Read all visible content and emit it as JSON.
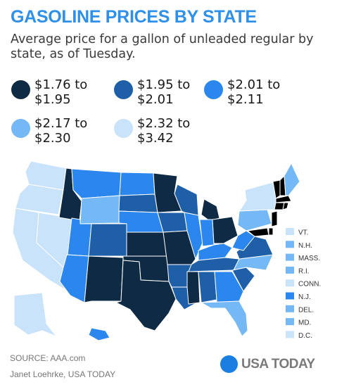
{
  "title": "GASOLINE PRICES BY STATE",
  "subtitle": "Average price for a gallon of unleaded regular by state, as of Tuesday.",
  "legend": [
    {
      "line1": "$1.76 to",
      "line2": "$1.95",
      "color": "#0f2a44"
    },
    {
      "line1": "$1.95 to",
      "line2": "$2.01",
      "color": "#1f5fa8"
    },
    {
      "line1": "$2.01 to",
      "line2": "$2.11",
      "color": "#2b87ee"
    },
    {
      "line1": "$2.17 to",
      "line2": "$2.30",
      "color": "#74b8f5"
    },
    {
      "line1": "$2.32 to",
      "line2": "$3.42",
      "color": "#c8e3fa"
    }
  ],
  "small_states": [
    {
      "label": "VT.",
      "bin": 4
    },
    {
      "label": "N.H.",
      "bin": 3
    },
    {
      "label": "MASS.",
      "bin": 3
    },
    {
      "label": "R.I.",
      "bin": 3
    },
    {
      "label": "CONN.",
      "bin": 4
    },
    {
      "label": "N.J.",
      "bin": 2
    },
    {
      "label": "DEL.",
      "bin": 3
    },
    {
      "label": "MD.",
      "bin": 3
    },
    {
      "label": "D.C.",
      "bin": 4
    }
  ],
  "states": {
    "WA": 4,
    "OR": 4,
    "CA": 4,
    "NV": 4,
    "ID": 0,
    "MT": 2,
    "WY": 3,
    "UT": 2,
    "AZ": 2,
    "CO": 1,
    "NM": 0,
    "ND": 2,
    "SD": 1,
    "NE": 2,
    "KS": 0,
    "OK": 0,
    "TX": 0,
    "MN": 0,
    "IA": 1,
    "MO": 0,
    "AR": 1,
    "LA": 1,
    "WI": 1,
    "IL": 2,
    "MI": 0,
    "IN": 2,
    "OH": 0,
    "KY": 2,
    "TN": 1,
    "MS": 0,
    "AL": 1,
    "GA": 2,
    "FL": 3,
    "SC": 1,
    "NC": 3,
    "VA": 1,
    "WV": 2,
    "PA": 3,
    "NY": 4,
    "ME": 3,
    "AK": 4,
    "HI": 2
  },
  "source": "SOURCE: AAA.com",
  "credit": "Janet Loehrke, USA TODAY",
  "brand": "USA TODAY"
}
